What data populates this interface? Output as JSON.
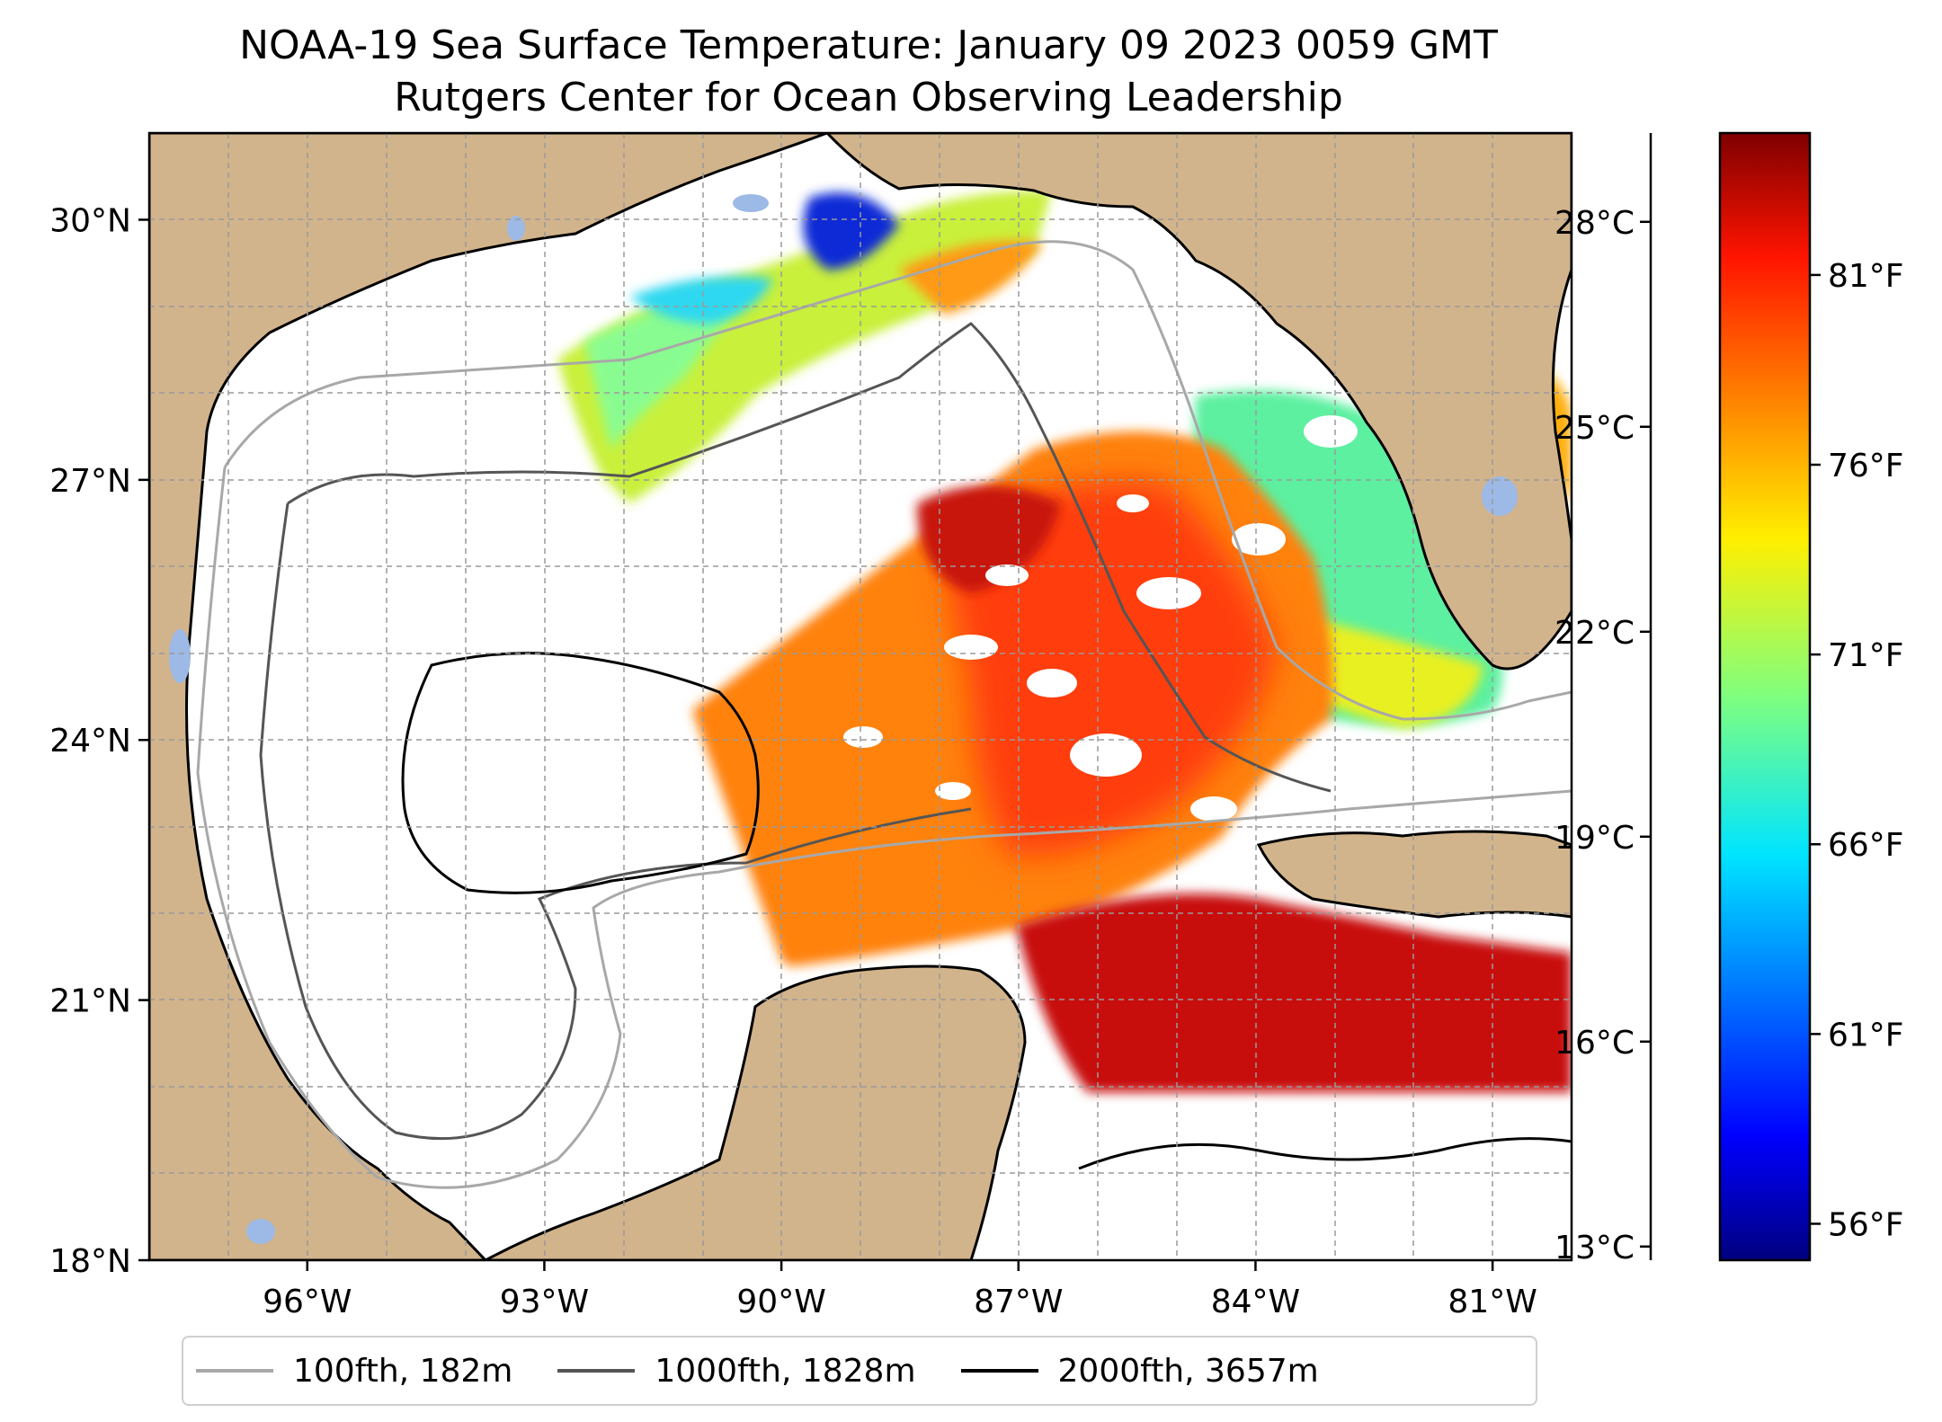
{
  "title": "NOAA-19 Sea Surface Temperature: January 09 2023 0059 GMT",
  "subtitle": "Rutgers Center for Ocean Observing Leadership",
  "map": {
    "extent": {
      "lon_min": -98,
      "lon_max": -80,
      "lat_min": 18,
      "lat_max": 31
    },
    "lon_ticks": [
      {
        "value": -96,
        "label": "96°W"
      },
      {
        "value": -93,
        "label": "93°W"
      },
      {
        "value": -90,
        "label": "90°W"
      },
      {
        "value": -87,
        "label": "87°W"
      },
      {
        "value": -84,
        "label": "84°W"
      },
      {
        "value": -81,
        "label": "81°W"
      }
    ],
    "lat_ticks": [
      {
        "value": 18,
        "label": "18°N"
      },
      {
        "value": 21,
        "label": "21°N"
      },
      {
        "value": 24,
        "label": "24°N"
      },
      {
        "value": 27,
        "label": "27°N"
      },
      {
        "value": 30,
        "label": "30°N"
      }
    ],
    "land_color": "#d2b48c",
    "water_body_color": "#9db9e6",
    "gridlines": true
  },
  "colorbar": {
    "colormap": "jet",
    "range_celsius": [
      12.8,
      29.3
    ],
    "celsius_ticks": [
      {
        "value": 13,
        "label": "13°C"
      },
      {
        "value": 16,
        "label": "16°C"
      },
      {
        "value": 19,
        "label": "19°C"
      },
      {
        "value": 22,
        "label": "22°C"
      },
      {
        "value": 25,
        "label": "25°C"
      },
      {
        "value": 28,
        "label": "28°C"
      }
    ],
    "fahrenheit_ticks": [
      {
        "value": 56,
        "label": "56°F"
      },
      {
        "value": 61,
        "label": "61°F"
      },
      {
        "value": 66,
        "label": "66°F"
      },
      {
        "value": 71,
        "label": "71°F"
      },
      {
        "value": 76,
        "label": "76°F"
      },
      {
        "value": 81,
        "label": "81°F"
      }
    ]
  },
  "legend": {
    "items": [
      {
        "label": "100fth, 182m",
        "color": "#a8a8a8"
      },
      {
        "label": "1000fth, 1828m",
        "color": "#555555"
      },
      {
        "label": "2000fth, 3657m",
        "color": "#000000"
      }
    ]
  }
}
